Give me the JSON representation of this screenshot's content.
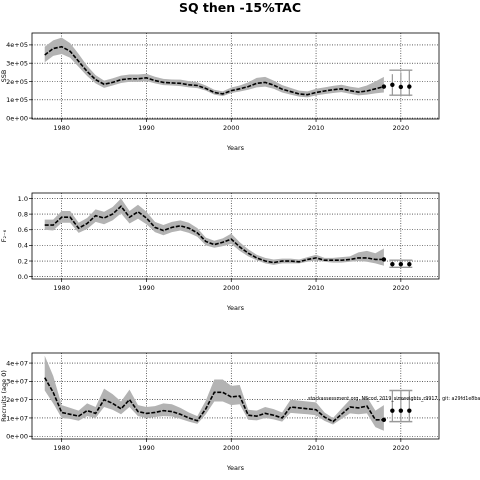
{
  "title": "SQ then -15%TAC",
  "colors": {
    "band": "#b3b3b3",
    "line": "#000000",
    "proj_band": "#999999",
    "grid": "#000000"
  },
  "chart_data": [
    {
      "type": "line",
      "ylabel": "SSB",
      "xlabel": "Years",
      "xlim": [
        1976.5,
        2024.5
      ],
      "ylim": [
        -5000,
        465000
      ],
      "xticks": [
        1980,
        1990,
        2000,
        2010,
        2020
      ],
      "yticks": [
        0,
        100000,
        200000,
        300000,
        400000
      ],
      "ytick_labels": [
        "0e+00",
        "1e+05",
        "2e+05",
        "3e+05",
        "4e+05"
      ],
      "grid": "dotted",
      "x": [
        1978,
        1979,
        1980,
        1981,
        1982,
        1983,
        1984,
        1985,
        1986,
        1987,
        1988,
        1989,
        1990,
        1991,
        1992,
        1993,
        1994,
        1995,
        1996,
        1997,
        1998,
        1999,
        2000,
        2001,
        2002,
        2003,
        2004,
        2005,
        2006,
        2007,
        2008,
        2009,
        2010,
        2011,
        2012,
        2013,
        2014,
        2015,
        2016,
        2017,
        2018
      ],
      "median": [
        345000,
        380000,
        390000,
        365000,
        310000,
        255000,
        210000,
        185000,
        195000,
        210000,
        215000,
        215000,
        220000,
        205000,
        195000,
        192000,
        190000,
        182000,
        178000,
        162000,
        140000,
        132000,
        150000,
        160000,
        172000,
        190000,
        195000,
        180000,
        158000,
        145000,
        132000,
        128000,
        140000,
        148000,
        155000,
        160000,
        150000,
        142000,
        148000,
        160000,
        172000
      ],
      "lower": [
        305000,
        340000,
        350000,
        330000,
        280000,
        230000,
        190000,
        165000,
        178000,
        192000,
        198000,
        198000,
        203000,
        190000,
        180000,
        178000,
        175000,
        168000,
        164000,
        150000,
        128000,
        120000,
        137000,
        145000,
        155000,
        168000,
        172000,
        160000,
        140000,
        128000,
        117000,
        113000,
        124000,
        131000,
        137000,
        142000,
        133000,
        124000,
        128000,
        135000,
        140000
      ],
      "upper": [
        390000,
        425000,
        440000,
        410000,
        350000,
        285000,
        235000,
        205000,
        217000,
        232000,
        238000,
        238000,
        242000,
        226000,
        214000,
        211000,
        210000,
        202000,
        196000,
        178000,
        155000,
        146000,
        167000,
        178000,
        195000,
        220000,
        225000,
        205000,
        180000,
        165000,
        150000,
        146000,
        160000,
        168000,
        176000,
        182000,
        172000,
        165000,
        178000,
        200000,
        225000
      ],
      "projection": {
        "years": [
          2019,
          2020,
          2021
        ],
        "median": [
          182000,
          170000,
          172000
        ],
        "lower": [
          125000,
          118000,
          120000
        ],
        "upper": [
          240000,
          250000,
          262000
        ]
      }
    },
    {
      "type": "line",
      "ylabel": "F₂₋₆",
      "xlabel": "Years",
      "xlim": [
        1976.5,
        2024.5
      ],
      "ylim": [
        -0.03,
        1.07
      ],
      "xticks": [
        1980,
        1990,
        2000,
        2010,
        2020
      ],
      "yticks": [
        0.0,
        0.2,
        0.4,
        0.6,
        0.8,
        1.0
      ],
      "ytick_labels": [
        "0.0",
        "0.2",
        "0.4",
        "0.6",
        "0.8",
        "1.0"
      ],
      "grid": "dotted",
      "x": [
        1978,
        1979,
        1980,
        1981,
        1982,
        1983,
        1984,
        1985,
        1986,
        1987,
        1988,
        1989,
        1990,
        1991,
        1992,
        1993,
        1994,
        1995,
        1996,
        1997,
        1998,
        1999,
        2000,
        2001,
        2002,
        2003,
        2004,
        2005,
        2006,
        2007,
        2008,
        2009,
        2010,
        2011,
        2012,
        2013,
        2014,
        2015,
        2016,
        2017,
        2018
      ],
      "median": [
        0.66,
        0.66,
        0.76,
        0.76,
        0.62,
        0.68,
        0.78,
        0.75,
        0.8,
        0.9,
        0.76,
        0.83,
        0.75,
        0.63,
        0.59,
        0.63,
        0.65,
        0.62,
        0.56,
        0.45,
        0.41,
        0.44,
        0.48,
        0.38,
        0.3,
        0.24,
        0.2,
        0.18,
        0.2,
        0.2,
        0.19,
        0.22,
        0.24,
        0.21,
        0.21,
        0.21,
        0.22,
        0.24,
        0.24,
        0.22,
        0.22
      ],
      "lower": [
        0.6,
        0.59,
        0.69,
        0.69,
        0.56,
        0.61,
        0.7,
        0.67,
        0.72,
        0.81,
        0.68,
        0.74,
        0.67,
        0.57,
        0.53,
        0.57,
        0.59,
        0.56,
        0.51,
        0.4,
        0.37,
        0.39,
        0.42,
        0.33,
        0.26,
        0.21,
        0.17,
        0.15,
        0.17,
        0.17,
        0.17,
        0.19,
        0.21,
        0.19,
        0.18,
        0.18,
        0.19,
        0.2,
        0.19,
        0.17,
        0.14
      ],
      "upper": [
        0.73,
        0.73,
        0.84,
        0.84,
        0.69,
        0.75,
        0.86,
        0.83,
        0.89,
        1.0,
        0.84,
        0.92,
        0.83,
        0.7,
        0.66,
        0.7,
        0.72,
        0.69,
        0.62,
        0.5,
        0.46,
        0.49,
        0.55,
        0.44,
        0.35,
        0.28,
        0.24,
        0.22,
        0.23,
        0.23,
        0.22,
        0.25,
        0.28,
        0.24,
        0.24,
        0.25,
        0.26,
        0.31,
        0.33,
        0.3,
        0.36
      ],
      "projection": {
        "years": [
          2019,
          2020,
          2021
        ],
        "median": [
          0.16,
          0.16,
          0.16
        ],
        "lower": [
          0.12,
          0.12,
          0.12
        ],
        "upper": [
          0.21,
          0.21,
          0.21
        ]
      }
    },
    {
      "type": "line",
      "ylabel": "Recruits (age 0)",
      "xlabel": "Years",
      "xlim": [
        1976.5,
        2024.5
      ],
      "ylim": [
        -1500000,
        45500000
      ],
      "xticks": [
        1980,
        1990,
        2000,
        2010,
        2020
      ],
      "yticks": [
        0,
        10000000,
        20000000,
        30000000,
        40000000
      ],
      "ytick_labels": [
        "0e+00",
        "1e+07",
        "2e+07",
        "3e+07",
        "4e+07"
      ],
      "grid": "dotted",
      "annotation": "stockassessment.org, NScod_2019_simweights_r9917 , git: a29fd1e8ba",
      "x": [
        1978,
        1979,
        1980,
        1981,
        1982,
        1983,
        1984,
        1985,
        1986,
        1987,
        1988,
        1989,
        1990,
        1991,
        1992,
        1993,
        1994,
        1995,
        1996,
        1997,
        1998,
        1999,
        2000,
        2001,
        2002,
        2003,
        2004,
        2005,
        2006,
        2007,
        2008,
        2009,
        2010,
        2011,
        2012,
        2013,
        2014,
        2015,
        2016,
        2017,
        2018
      ],
      "median": [
        32000000,
        24000000,
        13000000,
        12000000,
        11000000,
        14000000,
        12500000,
        20000000,
        18000000,
        15000000,
        20000000,
        13500000,
        12500000,
        13000000,
        14000000,
        13500000,
        12000000,
        10000000,
        8500000,
        15000000,
        24000000,
        24000000,
        21500000,
        22000000,
        11500000,
        11000000,
        12500000,
        11500000,
        10000000,
        16000000,
        15500000,
        15000000,
        14500000,
        10500000,
        8000000,
        12000000,
        16000000,
        15500000,
        16500000,
        9000000,
        9000000
      ],
      "lower": [
        25000000,
        18000000,
        10000000,
        9500000,
        8500000,
        11000000,
        10000000,
        16000000,
        14500000,
        12000000,
        16000000,
        11000000,
        10000000,
        10500000,
        11000000,
        10800000,
        9500000,
        8000000,
        6800000,
        12000000,
        19000000,
        19000000,
        17000000,
        17500000,
        9000000,
        8700000,
        10000000,
        9200000,
        8000000,
        12800000,
        12400000,
        12000000,
        11500000,
        8400000,
        6400000,
        9500000,
        12500000,
        12000000,
        12500000,
        5000000,
        3000000
      ],
      "upper": [
        44000000,
        33000000,
        17000000,
        15500000,
        14000000,
        18000000,
        16000000,
        26000000,
        23000000,
        19000000,
        25500000,
        17000000,
        16000000,
        16500000,
        18000000,
        17500000,
        15500000,
        13000000,
        11000000,
        19500000,
        31000000,
        31000000,
        27500000,
        28000000,
        14500000,
        14000000,
        16000000,
        14800000,
        13000000,
        20000000,
        19500000,
        19000000,
        18500000,
        13000000,
        10000000,
        15000000,
        20000000,
        19500000,
        21500000,
        14000000,
        17000000
      ],
      "projection": {
        "years": [
          2019,
          2020,
          2021
        ],
        "median": [
          14000000,
          14000000,
          14000000
        ],
        "lower": [
          8000000,
          8000000,
          8000000
        ],
        "upper": [
          25000000,
          25000000,
          25000000
        ]
      }
    }
  ]
}
